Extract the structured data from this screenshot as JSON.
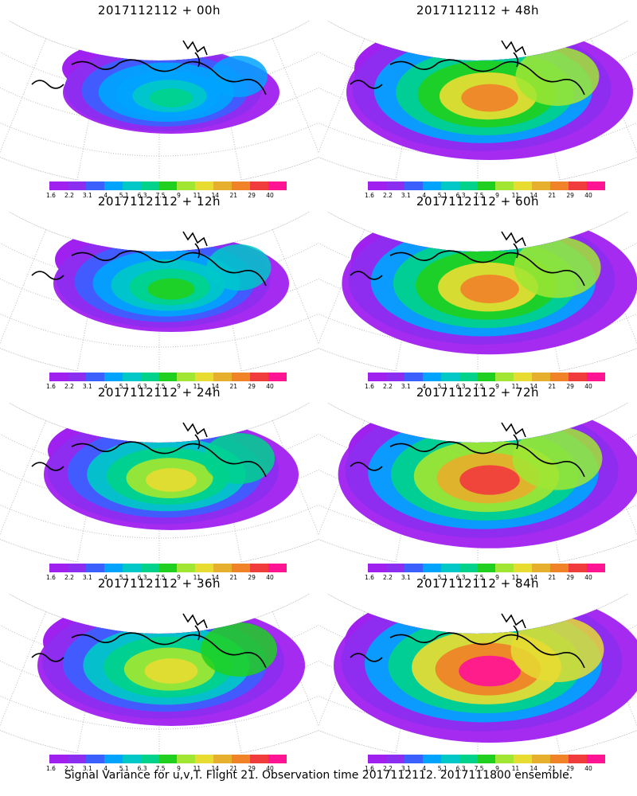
{
  "panels": [
    {
      "title": "2017112112 + 00h",
      "level": 0.2
    },
    {
      "title": "2017112112 + 48h",
      "level": 0.75
    },
    {
      "title": "2017112112 + 12h",
      "level": 0.35
    },
    {
      "title": "2017112112 + 60h",
      "level": 0.82
    },
    {
      "title": "2017112112 + 24h",
      "level": 0.5
    },
    {
      "title": "2017112112 + 72h",
      "level": 0.88
    },
    {
      "title": "2017112112 + 36h",
      "level": 0.6
    },
    {
      "title": "2017112112 + 84h",
      "level": 0.95
    }
  ],
  "colorbar": {
    "labels": [
      "1.6",
      "2.2",
      "3.1",
      "4",
      "5.1",
      "6.3",
      "7.5",
      "9",
      "11",
      "14",
      "21",
      "29",
      "40"
    ],
    "colors": [
      "#a020f0",
      "#8c2eef",
      "#3c60ff",
      "#00a4ff",
      "#00c8c8",
      "#00d28c",
      "#20d020",
      "#a0e632",
      "#e6dc32",
      "#e6af2d",
      "#f08228",
      "#f03c3c",
      "#ff1493"
    ]
  },
  "caption": "Signal Variance for u,v,T. Flight 21. Observation time 2017112112. 2017111800 ensemble."
}
